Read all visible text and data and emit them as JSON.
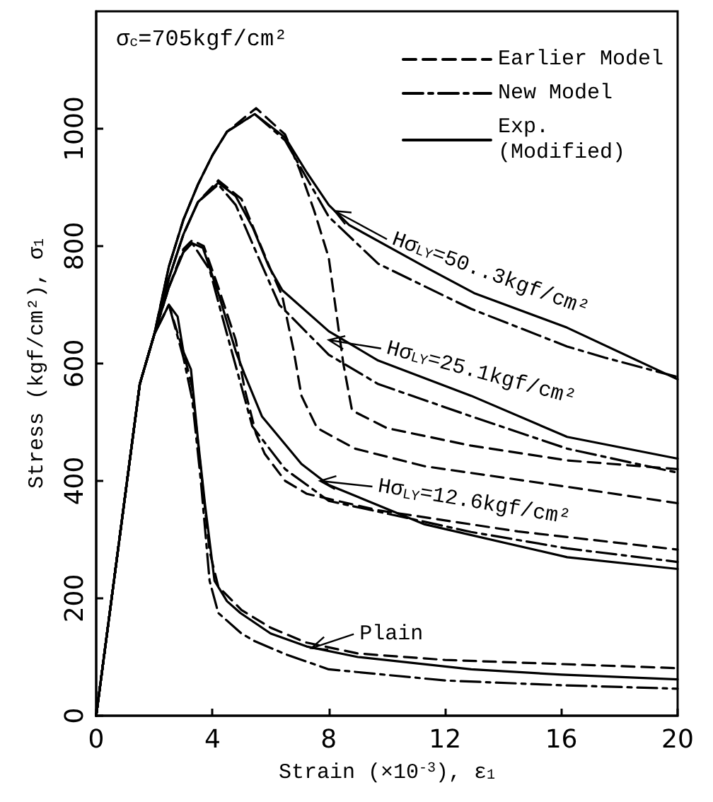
{
  "chart_data": {
    "type": "line",
    "xlabel": "Strain (×10$^{-3}$), ε$_{1}$",
    "ylabel": "Stress (kgf/cm²), σ$_{1}$",
    "xlim": [
      0,
      20
    ],
    "xticks": [
      0,
      4,
      8,
      12,
      16,
      20
    ],
    "ylim": [
      0,
      1200
    ],
    "yticks": [
      0,
      200,
      400,
      600,
      800,
      1000
    ],
    "legend": "top right",
    "marker": "none",
    "series": [
      {
        "name": "Earlier Model",
        "color": "#000000",
        "line_style": "dashed",
        "x": [
          0,
          1.5,
          2,
          2.5,
          3,
          3.3,
          3.6,
          3.9,
          4.2,
          5,
          6,
          7.2,
          9,
          12,
          16,
          20
        ],
        "values": [
          0,
          565,
          650,
          700,
          620,
          560,
          420,
          280,
          220,
          180,
          150,
          125,
          106,
          95,
          88,
          81
        ]
      },
      {
        "name": "New Model",
        "color": "#000000",
        "line_style": "dashdot",
        "x": [
          0,
          1.5,
          2,
          2.5,
          3,
          3.3,
          3.6,
          3.9,
          4.2,
          5,
          5.45,
          6.5,
          8,
          12,
          16,
          20
        ],
        "values": [
          0,
          565,
          650,
          700,
          610,
          540,
          400,
          230,
          175,
          140,
          127,
          105,
          79,
          60,
          52,
          46
        ]
      },
      {
        "name": "Exp.\n(Modified)",
        "color": "#000000",
        "line_style": "solid",
        "x": [
          0,
          1.5,
          2,
          2.5,
          2.8,
          3,
          3.26,
          3.5,
          3.75,
          4.07,
          4.5,
          4.96,
          6,
          7.24,
          9,
          12.9,
          16,
          20
        ],
        "values": [
          0,
          565,
          650,
          700,
          680,
          620,
          590,
          470,
          357,
          230,
          195,
          175,
          140,
          118,
          100,
          79,
          70,
          62
        ]
      },
      {
        "color": "#000000",
        "line_style": "dashed",
        "x": [
          0,
          1.5,
          2,
          2.5,
          3,
          3.3,
          3.7,
          4.2,
          4.8,
          5.1,
          5.5,
          5.8,
          6.5,
          7.25,
          9.7,
          14.5,
          20
        ],
        "values": [
          0,
          565,
          650,
          730,
          795,
          810,
          800,
          730,
          640,
          558,
          480,
          446,
          400,
          378,
          350,
          314,
          283
        ]
      },
      {
        "color": "#000000",
        "line_style": "dashdot",
        "x": [
          0,
          1.5,
          2,
          2.5,
          3,
          3.3,
          3.9,
          4.5,
          5,
          5.37,
          6.5,
          8,
          12.9,
          16.2,
          20
        ],
        "values": [
          0,
          565,
          650,
          730,
          790,
          805,
          760,
          650,
          560,
          493,
          420,
          366,
          313,
          285,
          262
        ]
      },
      {
        "color": "#000000",
        "line_style": "solid",
        "x": [
          0,
          1.5,
          2,
          2.5,
          3,
          3.3,
          3.67,
          4.2,
          4.8,
          5.1,
          5.7,
          7.06,
          8,
          11.3,
          16.2,
          20
        ],
        "values": [
          0,
          565,
          650,
          730,
          790,
          805,
          797,
          720,
          621,
          582,
          510,
          429,
          393,
          326,
          270,
          250
        ]
      },
      {
        "color": "#000000",
        "line_style": "dashed",
        "x": [
          0,
          1.5,
          2,
          2.5,
          3,
          3.5,
          4.2,
          5,
          6,
          6.4,
          6.8,
          7.06,
          7.6,
          8.9,
          11.3,
          16.2,
          20
        ],
        "values": [
          0,
          565,
          650,
          745,
          820,
          875,
          912,
          880,
          760,
          715,
          620,
          545,
          490,
          455,
          425,
          390,
          362
        ]
      },
      {
        "color": "#000000",
        "line_style": "dashdot",
        "x": [
          0,
          1.5,
          2,
          2.5,
          3,
          3.5,
          4.2,
          4.8,
          5.5,
          6.3,
          8,
          9.7,
          12.9,
          16.2,
          20
        ],
        "values": [
          0,
          565,
          650,
          745,
          820,
          875,
          905,
          870,
          790,
          700,
          615,
          565,
          510,
          455,
          414
        ]
      },
      {
        "color": "#000000",
        "line_style": "solid",
        "x": [
          0,
          1.5,
          2,
          2.5,
          3,
          3.5,
          4.2,
          4.8,
          5.4,
          5.94,
          6.4,
          8,
          9.7,
          11.3,
          12.9,
          16.2,
          20
        ],
        "values": [
          0,
          565,
          650,
          745,
          820,
          875,
          908,
          885,
          830,
          765,
          725,
          655,
          605,
          575,
          545,
          475,
          438
        ]
      },
      {
        "color": "#000000",
        "line_style": "dashed",
        "x": [
          0,
          1.5,
          2,
          2.5,
          3,
          3.5,
          4,
          4.5,
          5.5,
          6.5,
          7,
          7.5,
          8,
          8.5,
          8.8,
          10,
          12.9,
          16.2,
          20
        ],
        "values": [
          0,
          565,
          650,
          765,
          845,
          905,
          955,
          995,
          1035,
          990,
          930,
          860,
          780,
          600,
          520,
          490,
          460,
          435,
          420
        ]
      },
      {
        "color": "#000000",
        "line_style": "dashdot",
        "x": [
          0,
          1.5,
          2,
          2.5,
          3,
          3.5,
          4,
          4.5,
          5.45,
          6.5,
          7.25,
          8,
          9.7,
          12.9,
          16.2,
          17.5,
          20
        ],
        "values": [
          0,
          565,
          650,
          765,
          845,
          905,
          955,
          995,
          1025,
          980,
          915,
          850,
          770,
          693,
          629,
          610,
          577
        ]
      },
      {
        "color": "#000000",
        "line_style": "solid",
        "x": [
          0,
          1.5,
          2,
          2.5,
          3,
          3.5,
          4,
          4.5,
          5.45,
          6.5,
          7.25,
          8,
          8.7,
          11.3,
          13,
          16.2,
          20
        ],
        "values": [
          0,
          565,
          650,
          765,
          845,
          905,
          955,
          995,
          1025,
          985,
          925,
          870,
          836,
          765,
          720,
          661,
          573
        ]
      }
    ],
    "annotations": [
      "σ$_{c}$=705kgf/cm²",
      {
        "text": "Hσ$_{LY}$=50..3kgf/cm²",
        "x": 8.2,
        "y": 860
      },
      {
        "text": "Hσ$_{LY}$=25.1kgf/cm²",
        "x": 8,
        "y": 640
      },
      {
        "text": "Hσ$_{LY}$=12.6kgf/cm²",
        "x": 7.7,
        "y": 400
      },
      {
        "text": "Plain",
        "x": 7.4,
        "y": 115
      }
    ]
  }
}
